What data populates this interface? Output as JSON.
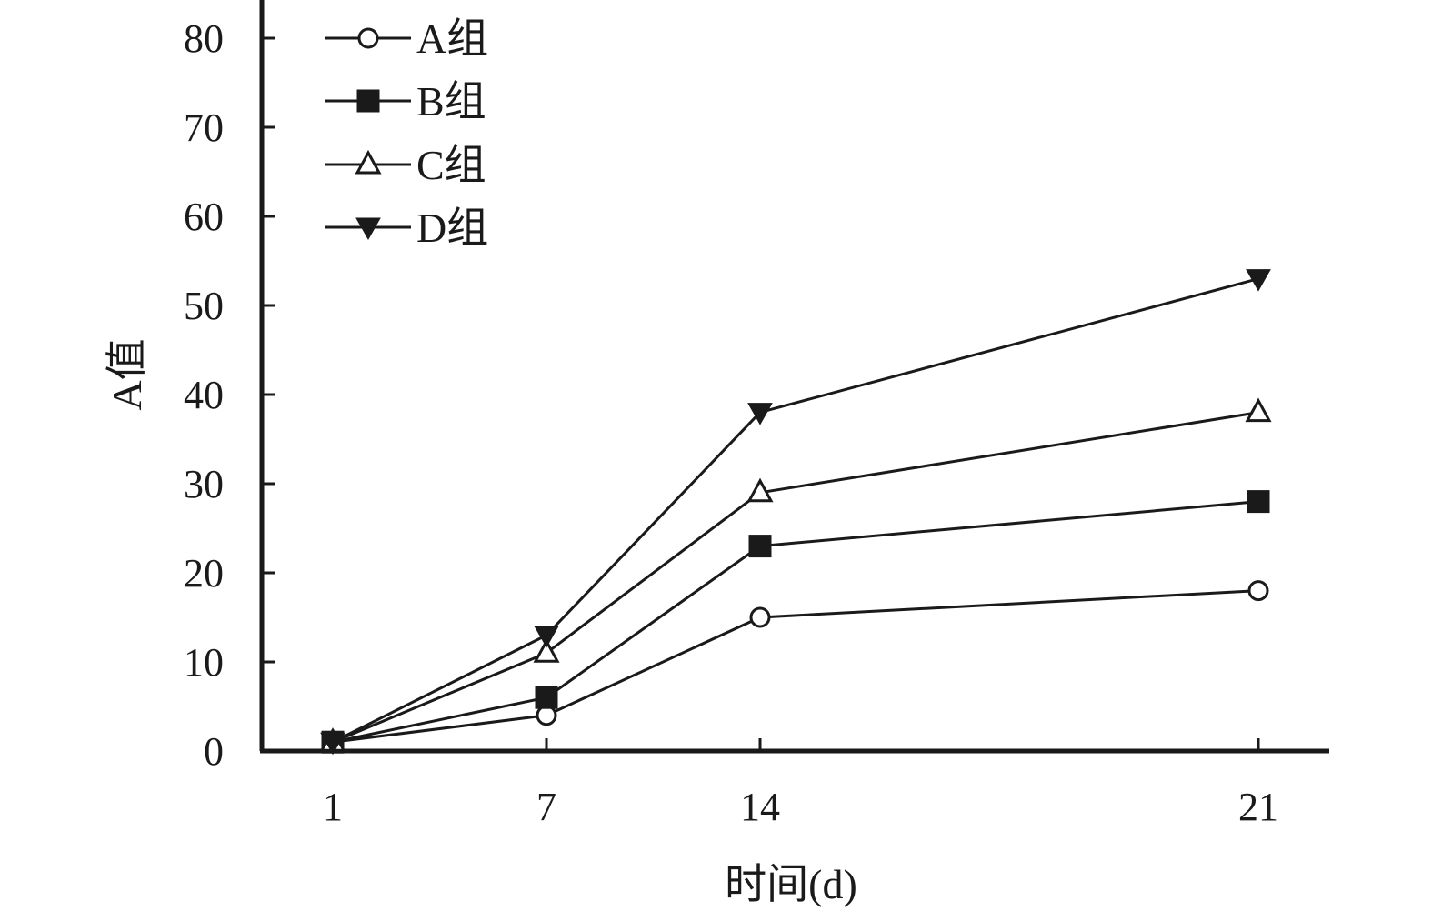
{
  "chart_data": {
    "type": "line",
    "title": "",
    "xlabel": "时间(d)",
    "ylabel": "A值",
    "categories": [
      "1",
      "7",
      "14",
      "21"
    ],
    "x": [
      1,
      7,
      14,
      21
    ],
    "ylim": [
      0,
      80
    ],
    "yticks": [
      0,
      10,
      20,
      30,
      40,
      50,
      60,
      70,
      80
    ],
    "grid": false,
    "legend_position": "top-left",
    "series": [
      {
        "name": "A组",
        "marker": "circle-open",
        "values": [
          1,
          4,
          15,
          18
        ]
      },
      {
        "name": "B组",
        "marker": "square-filled",
        "values": [
          1,
          6,
          23,
          28
        ]
      },
      {
        "name": "C组",
        "marker": "triangle-up-open",
        "values": [
          1,
          11,
          29,
          38
        ]
      },
      {
        "name": "D组",
        "marker": "triangle-down-filled",
        "values": [
          1,
          13,
          38,
          53
        ]
      }
    ],
    "colors": {
      "line": "#1a1a1a",
      "marker_fill": "#1a1a1a",
      "marker_open": "#ffffff"
    }
  }
}
